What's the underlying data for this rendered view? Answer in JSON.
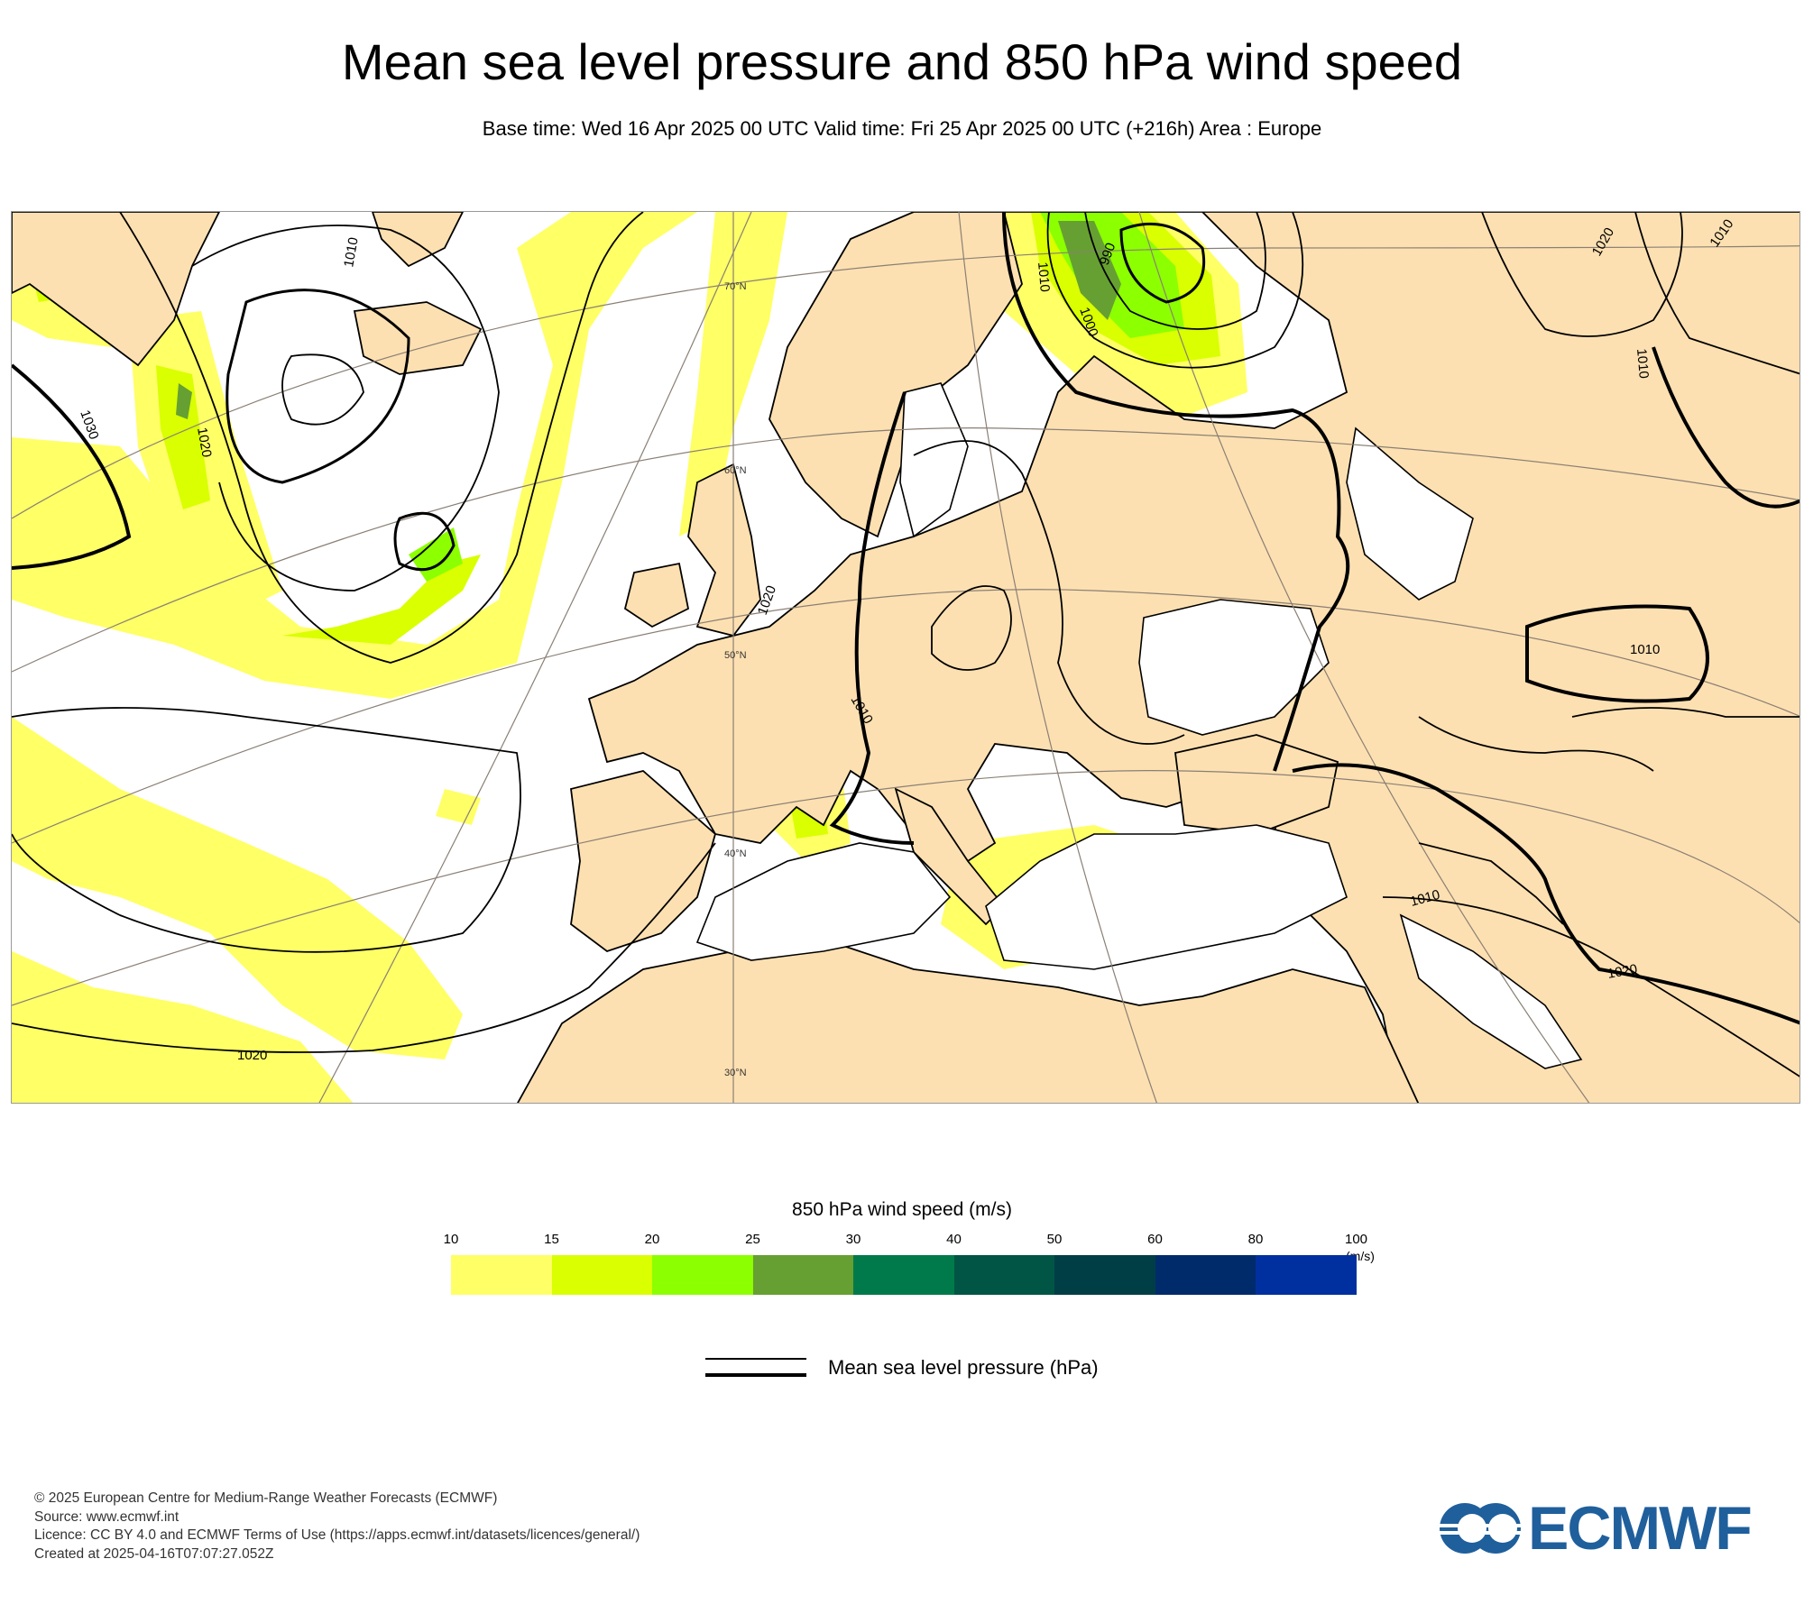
{
  "title": "Mean sea level pressure and 850 hPa wind speed",
  "subtitle": "Base time: Wed 16 Apr 2025 00 UTC Valid time: Fri 25 Apr 2025 00 UTC (+216h) Area : Europe",
  "map": {
    "latitude_labels": [
      "70°N",
      "60°N",
      "50°N",
      "40°N",
      "30°N"
    ],
    "isobar_labels": [
      "1010",
      "1030",
      "1020",
      "1020",
      "1010",
      "1020",
      "1000",
      "990",
      "1010",
      "1020",
      "1010",
      "1010",
      "1010",
      "1010",
      "1020"
    ],
    "colors": {
      "land": "#fde0b1",
      "sea": "#ffffff",
      "coast": "#000000",
      "grid": "#8a7f75"
    }
  },
  "legend": {
    "title": "850 hPa wind speed (m/s)",
    "levels": [
      "10",
      "15",
      "20",
      "25",
      "30",
      "40",
      "50",
      "60",
      "80",
      "100"
    ],
    "unit": "(m/s)",
    "colors": [
      "#ffff66",
      "#d9ff00",
      "#8cff00",
      "#66a032",
      "#007a4a",
      "#005545",
      "#003e46",
      "#002b6b",
      "#00309f"
    ]
  },
  "pressure_legend": {
    "label": "Mean sea level pressure (hPa)"
  },
  "footer": {
    "line1": "© 2025 European Centre for Medium-Range Weather Forecasts (ECMWF)",
    "line2": "Source: www.ecmwf.int",
    "line3": "Licence: CC BY 4.0 and ECMWF Terms of Use (https://apps.ecmwf.int/datasets/licences/general/)",
    "line4": "Created at 2025-04-16T07:07:27.052Z"
  },
  "logo": {
    "text": "ECMWF",
    "color": "#1f5f9c"
  }
}
